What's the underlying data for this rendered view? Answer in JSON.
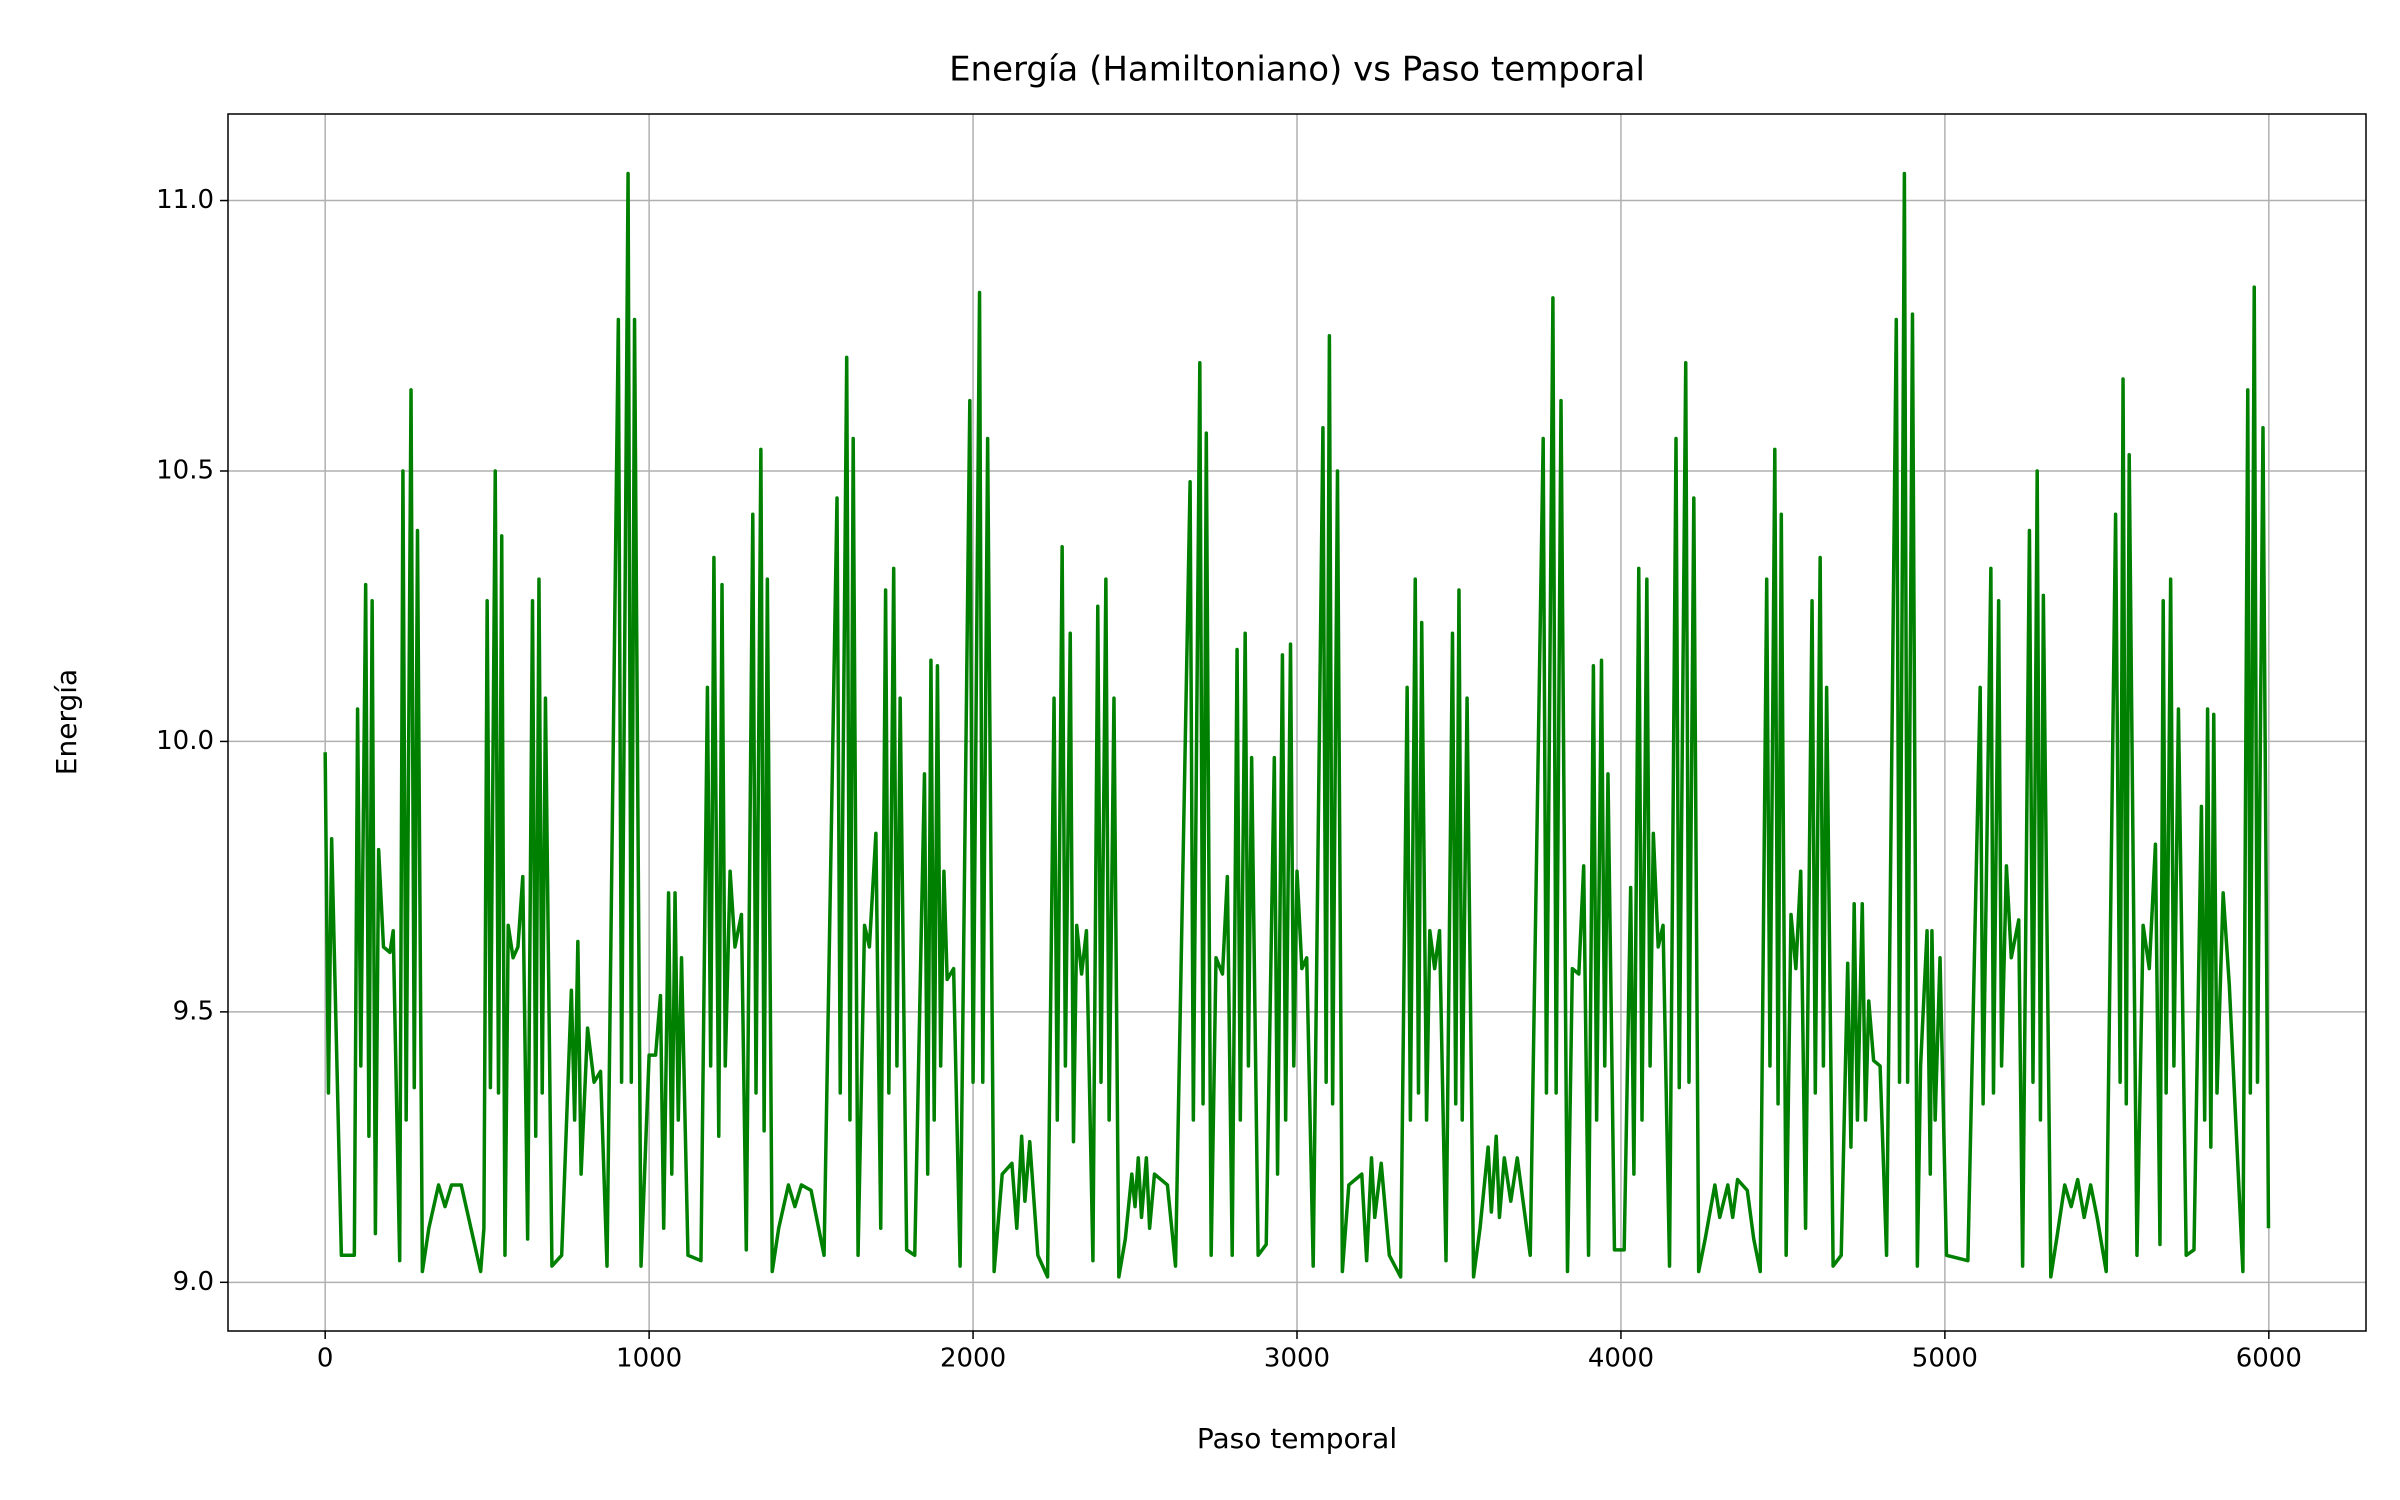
{
  "chart_data": {
    "type": "line",
    "title": "Energía (Hamiltoniano) vs Paso temporal",
    "x_label": "Paso temporal",
    "y_label": "Energía",
    "color": "#008000",
    "grid": true,
    "xlim": [
      -300,
      6300
    ],
    "ylim": [
      8.91,
      11.16
    ],
    "xticks": [
      0,
      1000,
      2000,
      3000,
      4000,
      5000,
      6000
    ],
    "yticks": [
      {
        "value": 9,
        "label": "9.0"
      },
      9.5,
      {
        "value": 10,
        "label": "10.0"
      },
      10.5,
      {
        "value": 11,
        "label": "11.0"
      }
    ],
    "x": [
      0,
      10,
      20,
      50,
      90,
      100,
      110,
      125,
      135,
      145,
      155,
      165,
      180,
      200,
      210,
      230,
      240,
      250,
      265,
      275,
      285,
      300,
      320,
      350,
      370,
      390,
      420,
      450,
      480,
      490,
      500,
      510,
      525,
      535,
      545,
      555,
      565,
      580,
      595,
      610,
      625,
      640,
      650,
      660,
      670,
      680,
      700,
      730,
      760,
      770,
      780,
      790,
      810,
      830,
      850,
      870,
      905,
      915,
      935,
      945,
      955,
      975,
      1000,
      1020,
      1035,
      1045,
      1060,
      1070,
      1080,
      1090,
      1100,
      1120,
      1160,
      1180,
      1190,
      1200,
      1215,
      1225,
      1235,
      1250,
      1265,
      1285,
      1300,
      1320,
      1330,
      1345,
      1355,
      1365,
      1380,
      1400,
      1430,
      1450,
      1470,
      1500,
      1540,
      1580,
      1590,
      1610,
      1620,
      1630,
      1645,
      1665,
      1680,
      1700,
      1715,
      1730,
      1740,
      1755,
      1765,
      1775,
      1795,
      1820,
      1850,
      1860,
      1870,
      1880,
      1890,
      1900,
      1910,
      1920,
      1940,
      1960,
      1990,
      2000,
      2020,
      2030,
      2045,
      2065,
      2090,
      2120,
      2135,
      2150,
      2160,
      2175,
      2200,
      2230,
      2250,
      2260,
      2275,
      2285,
      2300,
      2310,
      2320,
      2335,
      2350,
      2370,
      2385,
      2395,
      2410,
      2420,
      2435,
      2450,
      2470,
      2490,
      2500,
      2510,
      2520,
      2535,
      2545,
      2560,
      2600,
      2625,
      2670,
      2680,
      2700,
      2710,
      2720,
      2735,
      2750,
      2770,
      2785,
      2800,
      2815,
      2825,
      2840,
      2850,
      2860,
      2880,
      2905,
      2930,
      2940,
      2955,
      2965,
      2980,
      2990,
      3000,
      3015,
      3030,
      3050,
      3080,
      3090,
      3100,
      3110,
      3125,
      3140,
      3160,
      3200,
      3215,
      3230,
      3240,
      3260,
      3285,
      3320,
      3340,
      3350,
      3365,
      3375,
      3385,
      3400,
      3410,
      3425,
      3440,
      3460,
      3480,
      3490,
      3500,
      3510,
      3525,
      3545,
      3565,
      3590,
      3600,
      3615,
      3625,
      3640,
      3660,
      3680,
      3720,
      3760,
      3770,
      3790,
      3800,
      3815,
      3835,
      3850,
      3870,
      3885,
      3900,
      3915,
      3925,
      3940,
      3950,
      3960,
      3980,
      4010,
      4030,
      4040,
      4055,
      4065,
      4080,
      4090,
      4100,
      4115,
      4130,
      4150,
      4170,
      4180,
      4200,
      4210,
      4225,
      4240,
      4260,
      4290,
      4305,
      4330,
      4345,
      4360,
      4390,
      4410,
      4430,
      4450,
      4460,
      4475,
      4485,
      4495,
      4510,
      4525,
      4540,
      4555,
      4570,
      4590,
      4600,
      4615,
      4625,
      4635,
      4655,
      4680,
      4700,
      4710,
      4720,
      4730,
      4745,
      4755,
      4765,
      4780,
      4800,
      4820,
      4850,
      4860,
      4875,
      4885,
      4900,
      4915,
      4925,
      4945,
      4955,
      4960,
      4970,
      4985,
      5005,
      5071,
      5109,
      5118,
      5142,
      5150,
      5166,
      5175,
      5190,
      5205,
      5228,
      5240,
      5261,
      5272,
      5285,
      5295,
      5304,
      5327,
      5345,
      5370,
      5390,
      5410,
      5430,
      5450,
      5470,
      5498,
      5527,
      5541,
      5550,
      5560,
      5569,
      5593,
      5612,
      5631,
      5650,
      5664,
      5674,
      5683,
      5697,
      5707,
      5721,
      5745,
      5769,
      5792,
      5802,
      5811,
      5821,
      5830,
      5840,
      5859,
      5878,
      5920,
      5935,
      5943,
      5955,
      5965,
      5982,
      5999
    ],
    "values": [
      9.98,
      9.35,
      9.82,
      9.05,
      9.05,
      10.06,
      9.4,
      10.29,
      9.27,
      10.26,
      9.09,
      9.8,
      9.62,
      9.61,
      9.65,
      9.04,
      10.5,
      9.3,
      10.65,
      9.36,
      10.39,
      9.02,
      9.1,
      9.18,
      9.14,
      9.18,
      9.18,
      9.1,
      9.02,
      9.1,
      10.26,
      9.36,
      10.5,
      9.35,
      10.38,
      9.05,
      9.66,
      9.6,
      9.62,
      9.75,
      9.08,
      10.26,
      9.27,
      10.3,
      9.35,
      10.08,
      9.03,
      9.05,
      9.54,
      9.3,
      9.63,
      9.2,
      9.47,
      9.37,
      9.39,
      9.03,
      10.78,
      9.37,
      11.05,
      9.37,
      10.78,
      9.03,
      9.42,
      9.42,
      9.53,
      9.1,
      9.72,
      9.2,
      9.72,
      9.3,
      9.6,
      9.05,
      9.04,
      10.1,
      9.4,
      10.34,
      9.27,
      10.29,
      9.4,
      9.76,
      9.62,
      9.68,
      9.06,
      10.42,
      9.35,
      10.54,
      9.28,
      10.3,
      9.02,
      9.1,
      9.18,
      9.14,
      9.18,
      9.17,
      9.05,
      10.45,
      9.35,
      10.71,
      9.3,
      10.56,
      9.05,
      9.66,
      9.62,
      9.83,
      9.1,
      10.28,
      9.35,
      10.32,
      9.4,
      10.08,
      9.06,
      9.05,
      9.94,
      9.2,
      10.15,
      9.3,
      10.14,
      9.4,
      9.76,
      9.56,
      9.58,
      9.03,
      10.63,
      9.37,
      10.83,
      9.37,
      10.56,
      9.02,
      9.2,
      9.22,
      9.1,
      9.27,
      9.15,
      9.26,
      9.05,
      9.01,
      10.08,
      9.3,
      10.36,
      9.4,
      10.2,
      9.26,
      9.66,
      9.57,
      9.65,
      9.04,
      10.25,
      9.37,
      10.3,
      9.3,
      10.08,
      9.01,
      9.08,
      9.2,
      9.14,
      9.23,
      9.12,
      9.23,
      9.1,
      9.2,
      9.18,
      9.03,
      10.48,
      9.3,
      10.7,
      9.33,
      10.57,
      9.05,
      9.6,
      9.57,
      9.75,
      9.05,
      10.17,
      9.3,
      10.2,
      9.4,
      9.97,
      9.05,
      9.07,
      9.97,
      9.2,
      10.16,
      9.3,
      10.18,
      9.4,
      9.76,
      9.58,
      9.6,
      9.03,
      10.58,
      9.37,
      10.75,
      9.33,
      10.5,
      9.02,
      9.18,
      9.2,
      9.04,
      9.23,
      9.12,
      9.22,
      9.05,
      9.01,
      10.1,
      9.3,
      10.3,
      9.35,
      10.22,
      9.3,
      9.65,
      9.58,
      9.65,
      9.04,
      10.2,
      9.33,
      10.28,
      9.3,
      10.08,
      9.01,
      9.1,
      9.25,
      9.13,
      9.27,
      9.12,
      9.23,
      9.15,
      9.23,
      9.05,
      10.56,
      9.35,
      10.82,
      9.35,
      10.63,
      9.02,
      9.58,
      9.57,
      9.77,
      9.05,
      10.14,
      9.3,
      10.15,
      9.4,
      9.94,
      9.06,
      9.06,
      9.73,
      9.2,
      10.32,
      9.3,
      10.3,
      9.4,
      9.83,
      9.62,
      9.66,
      9.03,
      10.56,
      9.36,
      10.7,
      9.37,
      10.45,
      9.02,
      9.08,
      9.18,
      9.12,
      9.18,
      9.12,
      9.19,
      9.17,
      9.08,
      9.02,
      10.3,
      9.4,
      10.54,
      9.33,
      10.42,
      9.05,
      9.68,
      9.58,
      9.76,
      9.1,
      10.26,
      9.35,
      10.34,
      9.4,
      10.1,
      9.03,
      9.05,
      9.59,
      9.25,
      9.7,
      9.3,
      9.7,
      9.3,
      9.52,
      9.41,
      9.4,
      9.05,
      10.78,
      9.37,
      11.05,
      9.37,
      10.79,
      9.03,
      9.4,
      9.65,
      9.2,
      9.65,
      9.3,
      9.6,
      9.05,
      9.04,
      10.1,
      9.33,
      10.32,
      9.35,
      10.26,
      9.4,
      9.77,
      9.6,
      9.67,
      9.03,
      10.39,
      9.37,
      10.5,
      9.3,
      10.27,
      9.01,
      9.08,
      9.18,
      9.14,
      9.19,
      9.12,
      9.18,
      9.12,
      9.02,
      10.42,
      9.37,
      10.67,
      9.33,
      10.53,
      9.05,
      9.66,
      9.58,
      9.81,
      9.07,
      10.26,
      9.35,
      10.3,
      9.4,
      10.06,
      9.05,
      9.06,
      9.88,
      9.3,
      10.06,
      9.25,
      10.05,
      9.35,
      9.72,
      9.55,
      9.02,
      10.65,
      9.35,
      10.84,
      9.37,
      10.58,
      9.1
    ]
  }
}
